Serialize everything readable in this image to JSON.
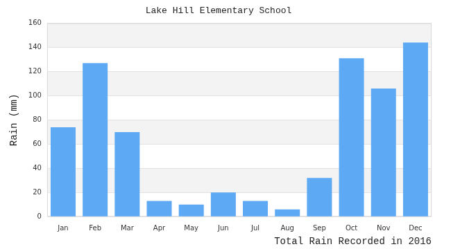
{
  "chart_data": {
    "type": "bar",
    "title": "Lake Hill Elementary School",
    "y_label": "Rain (mm)",
    "x_label": "Total Rain Recorded in 2016",
    "categories": [
      "Jan",
      "Feb",
      "Mar",
      "Apr",
      "May",
      "Jun",
      "Jul",
      "Aug",
      "Sep",
      "Oct",
      "Nov",
      "Dec"
    ],
    "values": [
      74,
      127,
      70,
      13,
      10,
      20,
      13,
      6,
      32,
      131,
      106,
      144
    ],
    "color": "#5ea9f4",
    "ylim": [
      0,
      160
    ],
    "yticks": [
      0,
      20,
      40,
      60,
      80,
      100,
      120,
      140,
      160
    ],
    "grid": true
  }
}
